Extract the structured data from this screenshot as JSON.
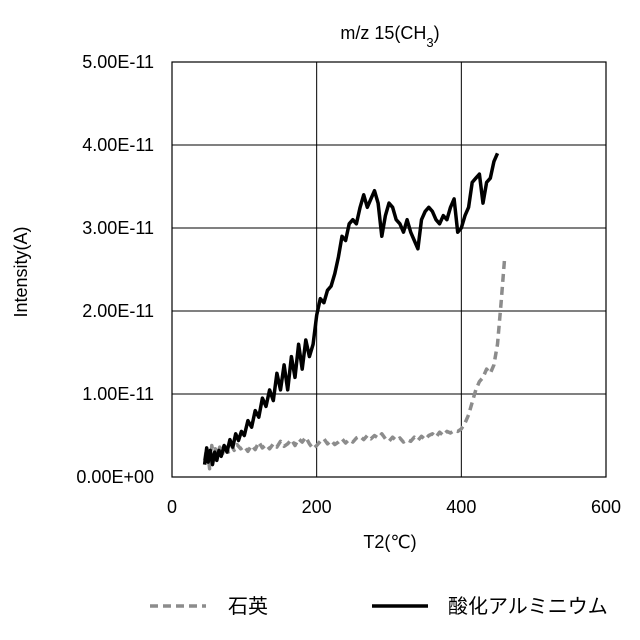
{
  "chart_data": {
    "type": "line",
    "title_main": "m/z 15(CH",
    "title_sub": "3",
    "title_close": ")",
    "xlabel": "T2(℃)",
    "ylabel": "Intensity(A)",
    "xlim": [
      0,
      600
    ],
    "ylim": [
      0,
      5e-11
    ],
    "xticks": [
      0,
      200,
      400,
      600
    ],
    "xtick_labels": [
      "0",
      "200",
      "400",
      "600"
    ],
    "yticks": [
      0,
      1e-11,
      2e-11,
      3e-11,
      4e-11,
      5e-11
    ],
    "ytick_labels": [
      "0.00E+00",
      "1.00E-11",
      "2.00E-11",
      "3.00E-11",
      "4.00E-11",
      "5.00E-11"
    ],
    "grid": true,
    "legend_position": "bottom",
    "series": [
      {
        "name": "石英",
        "color": "#8c8c8c",
        "style": "dashed",
        "points": [
          [
            45,
            2e-12
          ],
          [
            48,
            3.5e-12
          ],
          [
            50,
            2.5e-12
          ],
          [
            52,
            1e-12
          ],
          [
            55,
            3.8e-12
          ],
          [
            58,
            2.2e-12
          ],
          [
            60,
            3.4e-12
          ],
          [
            63,
            2.5e-12
          ],
          [
            66,
            3.6e-12
          ],
          [
            70,
            2.8e-12
          ],
          [
            74,
            4e-12
          ],
          [
            78,
            3e-12
          ],
          [
            82,
            3.8e-12
          ],
          [
            86,
            3.2e-12
          ],
          [
            90,
            3.9e-12
          ],
          [
            95,
            3.4e-12
          ],
          [
            100,
            3.7e-12
          ],
          [
            105,
            3.1e-12
          ],
          [
            110,
            3.8e-12
          ],
          [
            115,
            3.3e-12
          ],
          [
            120,
            4.2e-12
          ],
          [
            125,
            3.5e-12
          ],
          [
            130,
            3.9e-12
          ],
          [
            135,
            3.4e-12
          ],
          [
            140,
            4e-12
          ],
          [
            145,
            3.6e-12
          ],
          [
            150,
            4.3e-12
          ],
          [
            155,
            3.7e-12
          ],
          [
            160,
            4e-12
          ],
          [
            165,
            4.5e-12
          ],
          [
            170,
            3.8e-12
          ],
          [
            175,
            4.6e-12
          ],
          [
            180,
            4.2e-12
          ],
          [
            185,
            4.8e-12
          ],
          [
            190,
            4e-12
          ],
          [
            195,
            3.4e-12
          ],
          [
            200,
            3.8e-12
          ],
          [
            205,
            4.3e-12
          ],
          [
            210,
            4.6e-12
          ],
          [
            215,
            4e-12
          ],
          [
            220,
            4.4e-12
          ],
          [
            225,
            3.9e-12
          ],
          [
            230,
            4.2e-12
          ],
          [
            235,
            4.6e-12
          ],
          [
            240,
            4.1e-12
          ],
          [
            245,
            4.5e-12
          ],
          [
            250,
            4.2e-12
          ],
          [
            255,
            4.7e-12
          ],
          [
            260,
            4.9e-12
          ],
          [
            265,
            4.5e-12
          ],
          [
            270,
            5e-12
          ],
          [
            275,
            4.6e-12
          ],
          [
            280,
            5e-12
          ],
          [
            285,
            4.7e-12
          ],
          [
            290,
            5.2e-12
          ],
          [
            295,
            4.6e-12
          ],
          [
            300,
            4.3e-12
          ],
          [
            305,
            4.8e-12
          ],
          [
            310,
            4.4e-12
          ],
          [
            315,
            4.7e-12
          ],
          [
            320,
            4.2e-12
          ],
          [
            325,
            4.5e-12
          ],
          [
            330,
            4.3e-12
          ],
          [
            335,
            4.8e-12
          ],
          [
            340,
            4.4e-12
          ],
          [
            345,
            4.9e-12
          ],
          [
            350,
            4.5e-12
          ],
          [
            355,
            5e-12
          ],
          [
            360,
            5.2e-12
          ],
          [
            365,
            4.8e-12
          ],
          [
            370,
            5.4e-12
          ],
          [
            375,
            5e-12
          ],
          [
            380,
            5.5e-12
          ],
          [
            385,
            5.3e-12
          ],
          [
            390,
            5.6e-12
          ],
          [
            395,
            5.5e-12
          ],
          [
            400,
            5.8e-12
          ],
          [
            405,
            6.5e-12
          ],
          [
            410,
            7.5e-12
          ],
          [
            415,
            9e-12
          ],
          [
            420,
            1.05e-11
          ],
          [
            425,
            1.15e-11
          ],
          [
            430,
            1.2e-11
          ],
          [
            435,
            1.3e-11
          ],
          [
            440,
            1.25e-11
          ],
          [
            445,
            1.35e-11
          ],
          [
            450,
            1.6e-11
          ],
          [
            455,
            2.1e-11
          ],
          [
            460,
            2.65e-11
          ]
        ]
      },
      {
        "name": "酸化アルミニウム",
        "color": "#000000",
        "style": "solid",
        "points": [
          [
            45,
            1.5e-12
          ],
          [
            48,
            3.5e-12
          ],
          [
            50,
            1.8e-12
          ],
          [
            53,
            3.2e-12
          ],
          [
            56,
            1.5e-12
          ],
          [
            59,
            3e-12
          ],
          [
            62,
            2e-12
          ],
          [
            65,
            3.2e-12
          ],
          [
            68,
            2.5e-12
          ],
          [
            72,
            3.8e-12
          ],
          [
            76,
            3e-12
          ],
          [
            80,
            4.5e-12
          ],
          [
            84,
            3.6e-12
          ],
          [
            88,
            5.2e-12
          ],
          [
            92,
            4.4e-12
          ],
          [
            96,
            5.5e-12
          ],
          [
            100,
            5e-12
          ],
          [
            105,
            6.8e-12
          ],
          [
            110,
            6e-12
          ],
          [
            115,
            8e-12
          ],
          [
            120,
            7.2e-12
          ],
          [
            125,
            9.5e-12
          ],
          [
            130,
            8.5e-12
          ],
          [
            135,
            1.05e-11
          ],
          [
            140,
            9.2e-12
          ],
          [
            145,
            1.25e-11
          ],
          [
            150,
            1.05e-11
          ],
          [
            155,
            1.35e-11
          ],
          [
            160,
            1.05e-11
          ],
          [
            165,
            1.45e-11
          ],
          [
            170,
            1.2e-11
          ],
          [
            175,
            1.6e-11
          ],
          [
            180,
            1.3e-11
          ],
          [
            185,
            1.65e-11
          ],
          [
            190,
            1.45e-11
          ],
          [
            195,
            1.6e-11
          ],
          [
            200,
            1.95e-11
          ],
          [
            205,
            2.15e-11
          ],
          [
            210,
            2.1e-11
          ],
          [
            215,
            2.25e-11
          ],
          [
            220,
            2.3e-11
          ],
          [
            225,
            2.45e-11
          ],
          [
            230,
            2.65e-11
          ],
          [
            235,
            2.9e-11
          ],
          [
            240,
            2.85e-11
          ],
          [
            245,
            3.05e-11
          ],
          [
            250,
            3.1e-11
          ],
          [
            255,
            3.05e-11
          ],
          [
            260,
            3.25e-11
          ],
          [
            265,
            3.4e-11
          ],
          [
            270,
            3.25e-11
          ],
          [
            275,
            3.35e-11
          ],
          [
            280,
            3.45e-11
          ],
          [
            285,
            3.3e-11
          ],
          [
            290,
            2.9e-11
          ],
          [
            295,
            3.15e-11
          ],
          [
            300,
            3.3e-11
          ],
          [
            305,
            3.25e-11
          ],
          [
            310,
            3.1e-11
          ],
          [
            315,
            3.05e-11
          ],
          [
            320,
            2.95e-11
          ],
          [
            325,
            3.1e-11
          ],
          [
            330,
            2.95e-11
          ],
          [
            335,
            2.85e-11
          ],
          [
            340,
            2.75e-11
          ],
          [
            345,
            3.1e-11
          ],
          [
            350,
            3.2e-11
          ],
          [
            355,
            3.25e-11
          ],
          [
            360,
            3.2e-11
          ],
          [
            365,
            3.1e-11
          ],
          [
            370,
            3.05e-11
          ],
          [
            375,
            3.15e-11
          ],
          [
            380,
            3.1e-11
          ],
          [
            385,
            3.25e-11
          ],
          [
            390,
            3.35e-11
          ],
          [
            395,
            2.95e-11
          ],
          [
            400,
            3e-11
          ],
          [
            405,
            3.15e-11
          ],
          [
            410,
            3.25e-11
          ],
          [
            415,
            3.55e-11
          ],
          [
            420,
            3.6e-11
          ],
          [
            425,
            3.65e-11
          ],
          [
            430,
            3.3e-11
          ],
          [
            435,
            3.55e-11
          ],
          [
            440,
            3.6e-11
          ],
          [
            445,
            3.8e-11
          ],
          [
            450,
            3.9e-11
          ]
        ]
      }
    ]
  }
}
